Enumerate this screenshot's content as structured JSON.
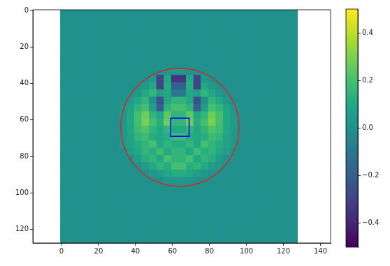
{
  "chart_data": {
    "type": "heatmap",
    "x": [
      1.5,
      5.5,
      9.5,
      13.5,
      17.5,
      21.5,
      25.5,
      29.5,
      33.5,
      37.5,
      41.5,
      45.5,
      49.5,
      53.5,
      57.5,
      61.5,
      65.5,
      69.5,
      73.5,
      77.5,
      81.5,
      85.5,
      89.5,
      93.5,
      97.5,
      101.5,
      105.5,
      109.5,
      113.5,
      117.5,
      121.5,
      125.5
    ],
    "y": [
      1.5,
      5.5,
      9.5,
      13.5,
      17.5,
      21.5,
      25.5,
      29.5,
      33.5,
      37.5,
      41.5,
      45.5,
      49.5,
      53.5,
      57.5,
      61.5,
      65.5,
      69.5,
      73.5,
      77.5,
      81.5,
      85.5,
      89.5,
      93.5,
      97.5,
      101.5,
      105.5,
      109.5,
      113.5,
      117.5,
      121.5,
      125.5
    ],
    "cells": [
      [
        0,
        0,
        0,
        0,
        0,
        0,
        0,
        0,
        0,
        0,
        0,
        0,
        0,
        0,
        0,
        0,
        0,
        0,
        0,
        0,
        0,
        0,
        0,
        0,
        0,
        0,
        0,
        0,
        0,
        0,
        0,
        0
      ],
      [
        0,
        0,
        0,
        0,
        0,
        0,
        0,
        0,
        0,
        0,
        0,
        0,
        0,
        0,
        0,
        0,
        0,
        0,
        0,
        0,
        0,
        0,
        0,
        0,
        0,
        0,
        0,
        0,
        0,
        0,
        0,
        0
      ],
      [
        0,
        0,
        0,
        0,
        0,
        0,
        0,
        0,
        0,
        0,
        0,
        0,
        0,
        0,
        0,
        0,
        0,
        0,
        0,
        0,
        0,
        0,
        0,
        0,
        0,
        0,
        0,
        0,
        0,
        0,
        0,
        0
      ],
      [
        0,
        0,
        0,
        0,
        0,
        0,
        0,
        0,
        0,
        0,
        0,
        0,
        0,
        0,
        0,
        0,
        0,
        0,
        0,
        0,
        0,
        0,
        0,
        0,
        0,
        0,
        0,
        0,
        0,
        0,
        0,
        0
      ],
      [
        0,
        0,
        0,
        0,
        0,
        0,
        0,
        0,
        0,
        0,
        0,
        0,
        0,
        0,
        0,
        0,
        0,
        0,
        0,
        0,
        0,
        0,
        0,
        0,
        0,
        0,
        0,
        0,
        0,
        0,
        0,
        0
      ],
      [
        0,
        0,
        0,
        0,
        0,
        0,
        0,
        0,
        0,
        0,
        0,
        0,
        0,
        0,
        0,
        0,
        0,
        0,
        0,
        0,
        0,
        0,
        0,
        0,
        0,
        0,
        0,
        0,
        0,
        0,
        0,
        0
      ],
      [
        0,
        0,
        0,
        0,
        0,
        0,
        0,
        0,
        0,
        0,
        0,
        0,
        0,
        0,
        0,
        0,
        0,
        0,
        0,
        0,
        0,
        0,
        0,
        0,
        0,
        0,
        0,
        0,
        0,
        0,
        0,
        0
      ],
      [
        0,
        0,
        0,
        0,
        0,
        0,
        0,
        0,
        0,
        0,
        0,
        0,
        0,
        0,
        0,
        0,
        0,
        0,
        0,
        0,
        0,
        0,
        0,
        0,
        0,
        0,
        0,
        0,
        0,
        0,
        0,
        0
      ],
      [
        0,
        0,
        0,
        0,
        0,
        0,
        0,
        0,
        0,
        0,
        0,
        0,
        0,
        0,
        0.02,
        0.03,
        0.03,
        0.02,
        0,
        0,
        0,
        0,
        0,
        0,
        0,
        0,
        0,
        0,
        0,
        0,
        0,
        0
      ],
      [
        0,
        0,
        0,
        0,
        0,
        0,
        0,
        0,
        0,
        0,
        0,
        0,
        0.03,
        -0.3,
        0.1,
        -0.35,
        -0.35,
        0.1,
        -0.3,
        0.03,
        0,
        0,
        0,
        0,
        0,
        0,
        0,
        0,
        0,
        0,
        0,
        0
      ],
      [
        0,
        0,
        0,
        0,
        0,
        0,
        0,
        0,
        0,
        0,
        0,
        0.03,
        0.1,
        -0.3,
        0.12,
        -0.2,
        -0.2,
        0.12,
        -0.3,
        0.1,
        0.03,
        0,
        0,
        0,
        0,
        0,
        0,
        0,
        0,
        0,
        0,
        0
      ],
      [
        0,
        0,
        0,
        0,
        0,
        0,
        0,
        0,
        0,
        0,
        0.03,
        0.1,
        0.15,
        0.05,
        0.1,
        -0.1,
        -0.1,
        0.1,
        0.05,
        0.15,
        0.1,
        0.03,
        0,
        0,
        0,
        0,
        0,
        0,
        0,
        0,
        0,
        0
      ],
      [
        0,
        0,
        0,
        0,
        0,
        0,
        0,
        0,
        0,
        0.03,
        0.1,
        0.15,
        0.0,
        -0.25,
        0.1,
        0.15,
        0.15,
        0.1,
        -0.25,
        0.0,
        0.15,
        0.1,
        0.03,
        0,
        0,
        0,
        0,
        0,
        0,
        0,
        0,
        0
      ],
      [
        0,
        0,
        0,
        0,
        0,
        0,
        0,
        0,
        0.03,
        0.08,
        0.15,
        0.2,
        0.05,
        -0.2,
        0.15,
        0.2,
        0.2,
        0.15,
        -0.2,
        0.05,
        0.2,
        0.15,
        0.08,
        0.02,
        0,
        0,
        0,
        0,
        0,
        0,
        0,
        0
      ],
      [
        0,
        0,
        0,
        0,
        0,
        0,
        0,
        0,
        0.03,
        0.1,
        0.2,
        0.28,
        0.15,
        0.1,
        0.25,
        0.15,
        0.15,
        0.25,
        0.1,
        0.15,
        0.28,
        0.2,
        0.1,
        0.03,
        0,
        0,
        0,
        0,
        0,
        0,
        0,
        0
      ],
      [
        0,
        0,
        0,
        0,
        0,
        0,
        0,
        0,
        0.03,
        0.1,
        0.2,
        0.3,
        0.2,
        0.12,
        0.28,
        0.15,
        0.15,
        0.28,
        0.12,
        0.2,
        0.3,
        0.2,
        0.1,
        0.03,
        0,
        0,
        0,
        0,
        0,
        0,
        0,
        0
      ],
      [
        0,
        0,
        0,
        0,
        0,
        0,
        0,
        0,
        0.03,
        0.1,
        0.18,
        0.22,
        0.15,
        0.1,
        0.15,
        0.1,
        0.1,
        0.15,
        0.1,
        0.15,
        0.22,
        0.18,
        0.1,
        0.03,
        0,
        0,
        0,
        0,
        0,
        0,
        0,
        0
      ],
      [
        0,
        0,
        0,
        0,
        0,
        0,
        0,
        0,
        0.03,
        0.08,
        0.15,
        0.18,
        0.12,
        0.1,
        0.12,
        0.18,
        0.18,
        0.12,
        0.1,
        0.12,
        0.18,
        0.15,
        0.08,
        0.03,
        0,
        0,
        0,
        0,
        0,
        0,
        0,
        0
      ],
      [
        0,
        0,
        0,
        0,
        0,
        0,
        0,
        0,
        0.03,
        0.08,
        0.12,
        0.15,
        0.2,
        0.1,
        0.15,
        0.12,
        0.12,
        0.15,
        0.1,
        0.2,
        0.15,
        0.12,
        0.08,
        0.03,
        0,
        0,
        0,
        0,
        0,
        0,
        0,
        0
      ],
      [
        0,
        0,
        0,
        0,
        0,
        0,
        0,
        0,
        0,
        0.05,
        0.1,
        0.15,
        0.12,
        0.18,
        0.1,
        0.15,
        0.15,
        0.1,
        0.18,
        0.12,
        0.15,
        0.1,
        0.05,
        0,
        0,
        0,
        0,
        0,
        0,
        0,
        0,
        0
      ],
      [
        0,
        0,
        0,
        0,
        0,
        0,
        0,
        0,
        0,
        0,
        0.05,
        0.12,
        0.15,
        0.1,
        0.2,
        0.15,
        0.15,
        0.2,
        0.1,
        0.15,
        0.12,
        0.05,
        0,
        0,
        0,
        0,
        0,
        0,
        0,
        0,
        0,
        0
      ],
      [
        0,
        0,
        0,
        0,
        0,
        0,
        0,
        0,
        0,
        0,
        0,
        0.05,
        0.1,
        0.15,
        0.12,
        0.2,
        0.2,
        0.12,
        0.15,
        0.1,
        0.05,
        0.03,
        0,
        0,
        0,
        0,
        0,
        0,
        0,
        0,
        0,
        0
      ],
      [
        0,
        0,
        0,
        0,
        0,
        0,
        0,
        0,
        0,
        0,
        0,
        0,
        0.03,
        0.05,
        0.1,
        0.12,
        0.12,
        0.1,
        0.05,
        0.03,
        0,
        0,
        0,
        0,
        0,
        0,
        0,
        0,
        0,
        0,
        0,
        0
      ],
      [
        0,
        0,
        0,
        0,
        0,
        0,
        0,
        0,
        0,
        0,
        0,
        0,
        0,
        0,
        0.02,
        0.03,
        0.03,
        0.02,
        0,
        0,
        0,
        0,
        0,
        0,
        0,
        0,
        0,
        0,
        0,
        0,
        0,
        0
      ],
      [
        0,
        0,
        0,
        0,
        0,
        0,
        0,
        0,
        0,
        0,
        0,
        0,
        0,
        0,
        0,
        0,
        0,
        0,
        0,
        0,
        0,
        0,
        0,
        0,
        0,
        0,
        0,
        0,
        0,
        0,
        0,
        0
      ],
      [
        0,
        0,
        0,
        0,
        0,
        0,
        0,
        0,
        0,
        0,
        0,
        0,
        0,
        0,
        0,
        0,
        0,
        0,
        0,
        0,
        0,
        0,
        0,
        0,
        0,
        0,
        0,
        0,
        0,
        0,
        0,
        0
      ],
      [
        0,
        0,
        0,
        0,
        0,
        0,
        0,
        0,
        0,
        0,
        0,
        0,
        0,
        0,
        0,
        0,
        0,
        0,
        0,
        0,
        0,
        0,
        0,
        0,
        0,
        0,
        0,
        0,
        0,
        0,
        0,
        0
      ],
      [
        0,
        0,
        0,
        0,
        0,
        0,
        0,
        0,
        0,
        0,
        0,
        0,
        0,
        0,
        0,
        0,
        0,
        0,
        0,
        0,
        0,
        0,
        0,
        0,
        0,
        0,
        0,
        0,
        0,
        0,
        0,
        0
      ],
      [
        0,
        0,
        0,
        0,
        0,
        0,
        0,
        0,
        0,
        0,
        0,
        0,
        0,
        0,
        0,
        0,
        0,
        0,
        0,
        0,
        0,
        0,
        0,
        0,
        0,
        0,
        0,
        0,
        0,
        0,
        0,
        0
      ],
      [
        0,
        0,
        0,
        0,
        0,
        0,
        0,
        0,
        0,
        0,
        0,
        0,
        0,
        0,
        0,
        0,
        0,
        0,
        0,
        0,
        0,
        0,
        0,
        0,
        0,
        0,
        0,
        0,
        0,
        0,
        0,
        0
      ],
      [
        0,
        0,
        0,
        0,
        0,
        0,
        0,
        0,
        0,
        0,
        0,
        0,
        0,
        0,
        0,
        0,
        0,
        0,
        0,
        0,
        0,
        0,
        0,
        0,
        0,
        0,
        0,
        0,
        0,
        0,
        0,
        0
      ],
      [
        0,
        0,
        0,
        0,
        0,
        0,
        0,
        0,
        0,
        0,
        0,
        0,
        0,
        0,
        0,
        0,
        0,
        0,
        0,
        0,
        0,
        0,
        0,
        0,
        0,
        0,
        0,
        0,
        0,
        0,
        0,
        0
      ]
    ],
    "xlim": [
      -15.5,
      145.5
    ],
    "ylim": [
      127.5,
      -0.5
    ],
    "xticks": [
      0,
      20,
      40,
      60,
      80,
      100,
      120,
      140
    ],
    "yticks": [
      0,
      20,
      40,
      60,
      80,
      100,
      120
    ],
    "grid": false,
    "colorbar": {
      "range": [
        -0.5,
        0.5
      ],
      "ticks": [
        {
          "value": -0.4,
          "label": "−0.4"
        },
        {
          "value": -0.2,
          "label": "−0.2"
        },
        {
          "value": 0,
          "label": "0.0"
        },
        {
          "value": 0.2,
          "label": "0.2"
        },
        {
          "value": 0.4,
          "label": "0.4"
        }
      ]
    },
    "shapes": [
      {
        "type": "circle",
        "center": [
          64,
          64
        ],
        "radius": 32,
        "color": "#d62728"
      },
      {
        "type": "rectangle",
        "x": [
          59,
          69
        ],
        "y": [
          59,
          69
        ],
        "color": "#0000ff"
      }
    ]
  }
}
